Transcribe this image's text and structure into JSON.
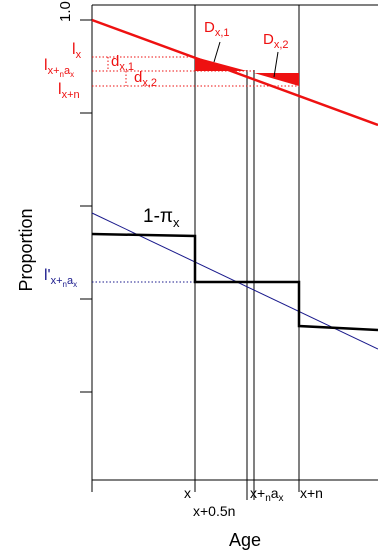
{
  "axes": {
    "y_label": "Proportion",
    "x_label": "Age",
    "y_top_tick": "1.0"
  },
  "colors": {
    "survival_line": "#ee1111",
    "approx_line": "#1a1a8c",
    "step_line": "#000000",
    "dotted": "#ee1111"
  },
  "labels": {
    "lx": "l",
    "lx_sub": "x",
    "lxna": "l",
    "lxna_sub": "x+",
    "lxna_sub_n": "n",
    "lxna_sub_a": "a",
    "lxna_sub_x": "x",
    "lxn": "l",
    "lxn_sub": "x+n",
    "dx1": "d",
    "dx1_sub": "x,1",
    "dx2": "d",
    "dx2_sub": "x,2",
    "Dx1": "D",
    "Dx1_sub": "x,1",
    "Dx2": "D",
    "Dx2_sub": "x,2",
    "one_minus_pi": "1-π",
    "one_minus_pi_sub": "x",
    "lprime": "l'",
    "lprime_sub": "x+",
    "lprime_sub_n": "n",
    "lprime_sub_a": "a",
    "lprime_sub_x": "x"
  },
  "x_ticks": {
    "x": "x",
    "x_half": "x+0.5n",
    "x_na": "x+",
    "x_na_n": "n",
    "x_na_a": "a",
    "x_na_x": "x",
    "x_n": "x+n"
  }
}
